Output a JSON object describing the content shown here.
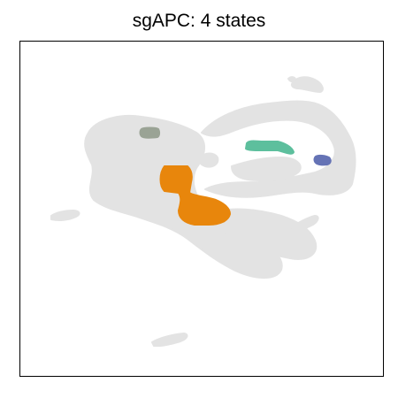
{
  "chart_data": {
    "type": "scatter",
    "title": "sgAPC: 4 states",
    "xlabel": "",
    "ylabel": "",
    "ticks": "none",
    "legend": "none",
    "grid": false,
    "background_color": "#e3e3e3",
    "series": [
      {
        "color": "#e8860c",
        "state": 1
      },
      {
        "color": "#5dbf9d",
        "state": 2
      },
      {
        "color": "#9aa395",
        "state": 3
      },
      {
        "color": "#6573b5",
        "state": 4
      }
    ]
  }
}
